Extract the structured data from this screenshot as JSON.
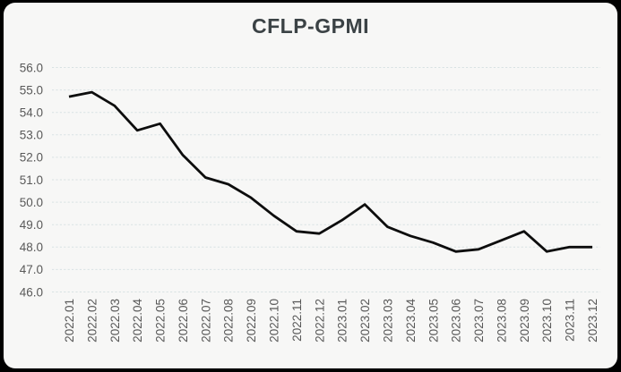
{
  "colors": {
    "frame_background": "#000000",
    "card_background": "#f7f7f6",
    "title_text": "#3b4245",
    "axis_text": "#595959",
    "gridline": "#d8e2e3",
    "series_line": "#0d0d0d"
  },
  "chart_data": {
    "type": "line",
    "title": "CFLP-GPMI",
    "categories": [
      "2022.01",
      "2022.02",
      "2022.03",
      "2022.04",
      "2022.05",
      "2022.06",
      "2022.07",
      "2022.08",
      "2022.09",
      "2022.10",
      "2022.11",
      "2022.12",
      "2023.01",
      "2023.02",
      "2023.03",
      "2023.04",
      "2023.05",
      "2023.06",
      "2023.07",
      "2023.08",
      "2023.09",
      "2023.10",
      "2023.11",
      "2023.12"
    ],
    "series": [
      {
        "name": "CFLP-GPMI",
        "color": "#0d0d0d",
        "values": [
          54.7,
          54.9,
          54.3,
          53.2,
          53.5,
          52.1,
          51.1,
          50.8,
          50.2,
          49.4,
          48.7,
          48.6,
          49.2,
          49.9,
          48.9,
          48.5,
          48.2,
          47.8,
          47.9,
          48.3,
          48.7,
          47.8,
          48.0,
          48.0
        ]
      }
    ],
    "xlabel": "",
    "ylabel": "",
    "ylim": [
      46.0,
      56.0
    ],
    "yticks": [
      "56.0",
      "55.0",
      "54.0",
      "53.0",
      "52.0",
      "51.0",
      "50.0",
      "49.0",
      "48.0",
      "47.0",
      "46.0"
    ],
    "grid": "horizontal dashed",
    "legend_position": "none",
    "markers": "none",
    "x_tick_rotation_degrees": 90
  }
}
